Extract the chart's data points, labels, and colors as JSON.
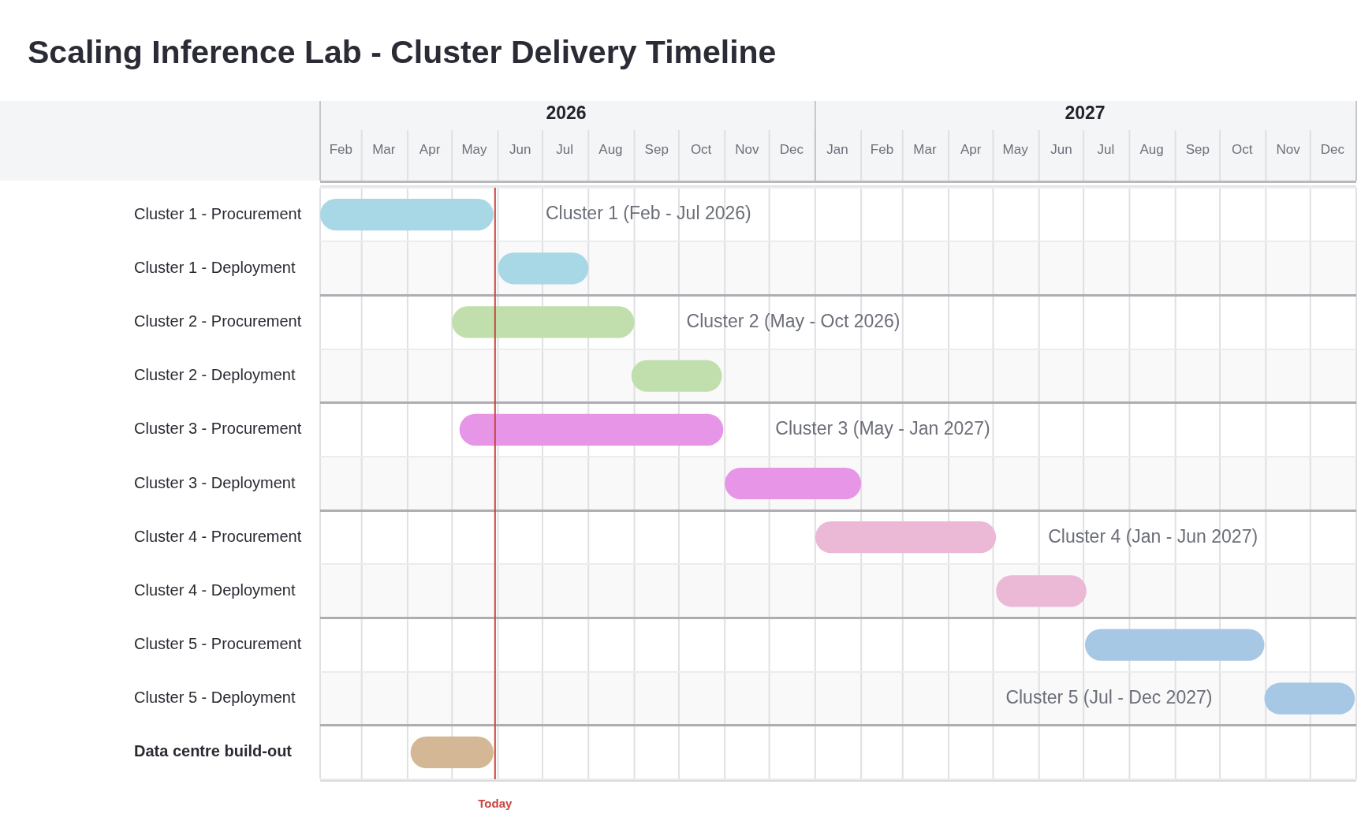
{
  "chart_data": {
    "type": "bar",
    "orientation": "horizontal",
    "title": "Scaling Inference Lab - Cluster Delivery Timeline",
    "categories": [
      "Cluster 1 - Procurement",
      "Cluster 1 - Deployment",
      "Cluster 2 - Procurement",
      "Cluster 2 - Deployment",
      "Cluster 3 - Procurement",
      "Cluster 3 - Deployment",
      "Cluster 4 - Procurement",
      "Cluster 4 - Deployment",
      "Cluster 5 - Procurement",
      "Cluster 5 - Deployment",
      "Data centre build-out"
    ],
    "base": [
      20485,
      20605,
      20574,
      20695,
      20579,
      20758,
      20819,
      20941,
      21001,
      21122,
      20546
    ],
    "values": [
      117,
      61,
      123,
      61,
      178,
      92,
      122,
      61,
      121,
      61,
      56
    ],
    "colors": [
      "#a8d8e6",
      "#a8d8e6",
      "#c0dfad",
      "#c0dfad",
      "#e795e6",
      "#e795e6",
      "#ebb9d5",
      "#ebb9d5",
      "#a6c8e4",
      "#a6c8e4",
      "#d4b896"
    ],
    "xlim": [
      "2026-02-01",
      "2028-01-01"
    ],
    "xticks": [
      {
        "value": "2026-02-01",
        "label": null
      },
      {
        "value": "2026-02-15",
        "label": "Feb"
      },
      {
        "value": "2026-03-01",
        "label": null
      },
      {
        "value": "2026-03-16",
        "label": "Mar"
      },
      {
        "value": "2026-04-01",
        "label": null
      },
      {
        "value": "2026-04-16",
        "label": "Apr"
      },
      {
        "value": "2026-05-01",
        "label": null
      },
      {
        "value": "2026-05-16",
        "label": "May"
      },
      {
        "value": "2026-06-01",
        "label": null
      },
      {
        "value": "2026-06-16",
        "label": "Jun"
      },
      {
        "value": "2026-07-01",
        "label": null
      },
      {
        "value": "2026-07-16",
        "label": "Jul"
      },
      {
        "value": "2026-08-01",
        "label": null
      },
      {
        "value": "2026-08-16",
        "label": "Aug"
      },
      {
        "value": "2026-09-01",
        "label": null
      },
      {
        "value": "2026-09-16",
        "label": "Sep"
      },
      {
        "value": "2026-10-01",
        "label": null
      },
      {
        "value": "2026-10-16",
        "label": "Oct"
      },
      {
        "value": "2026-11-01",
        "label": null
      },
      {
        "value": "2026-11-16",
        "label": "Nov"
      },
      {
        "value": "2026-12-01",
        "label": null
      },
      {
        "value": "2026-12-16",
        "label": "Dec"
      },
      {
        "value": "2027-01-01",
        "label": null
      },
      {
        "value": "2027-01-16",
        "label": "Jan"
      },
      {
        "value": "2027-02-01",
        "label": null
      },
      {
        "value": "2027-02-15",
        "label": "Feb"
      },
      {
        "value": "2027-03-01",
        "label": null
      },
      {
        "value": "2027-03-16",
        "label": "Mar"
      },
      {
        "value": "2027-04-01",
        "label": null
      },
      {
        "value": "2027-04-16",
        "label": "Apr"
      },
      {
        "value": "2027-05-01",
        "label": null
      },
      {
        "value": "2027-05-16",
        "label": "May"
      },
      {
        "value": "2027-06-01",
        "label": null
      },
      {
        "value": "2027-06-16",
        "label": "Jun"
      },
      {
        "value": "2027-07-01",
        "label": null
      },
      {
        "value": "2027-07-16",
        "label": "Jul"
      },
      {
        "value": "2027-08-01",
        "label": null
      },
      {
        "value": "2027-08-16",
        "label": "Aug"
      },
      {
        "value": "2027-09-01",
        "label": null
      },
      {
        "value": "2027-09-16",
        "label": "Sep"
      },
      {
        "value": "2027-10-01",
        "label": null
      },
      {
        "value": "2027-10-16",
        "label": "Oct"
      },
      {
        "value": "2027-11-01",
        "label": null
      },
      {
        "value": "2027-11-16",
        "label": "Nov"
      },
      {
        "value": "2027-12-01",
        "label": null
      },
      {
        "value": "2027-12-16",
        "label": "Dec"
      },
      {
        "value": "2028-01-01",
        "label": null
      }
    ],
    "x2lim": [
      "2026-02-01",
      "2028-01-01"
    ],
    "x2ticks": [
      {
        "value": "2026-02-01",
        "label": null
      },
      {
        "value": "2026-07-17",
        "label": "2026"
      },
      {
        "value": "2027-01-01",
        "label": null
      },
      {
        "value": "2027-07-02",
        "label": "2027"
      },
      {
        "value": "2028-01-01",
        "label": null
      }
    ],
    "grid": true,
    "ref_lines": [
      {
        "axis": "x",
        "value": "2026-05-30",
        "label": "Today",
        "color": "#c8463e"
      }
    ],
    "annotations": [
      {
        "text": "Cluster 1 (Feb - Jul 2026)",
        "x": "2026-05-29",
        "y": "Cluster 1 - Procurement"
      },
      {
        "text": "Cluster 2 (May - Oct 2026)",
        "x": "2026-09-01",
        "y": "Cluster 2 - Procurement"
      },
      {
        "text": "Cluster 3 (May - Jan 2027)",
        "x": "2026-10-31",
        "y": "Cluster 3 - Procurement"
      },
      {
        "text": "Cluster 4 (Jan - Jun 2027)",
        "x": "2027-05-03",
        "y": "Cluster 4 - Procurement"
      },
      {
        "text": "Cluster 5 (Jul - Dec 2027)",
        "x": "2027-10-31",
        "y": "Cluster 5 - Deployment"
      }
    ]
  }
}
